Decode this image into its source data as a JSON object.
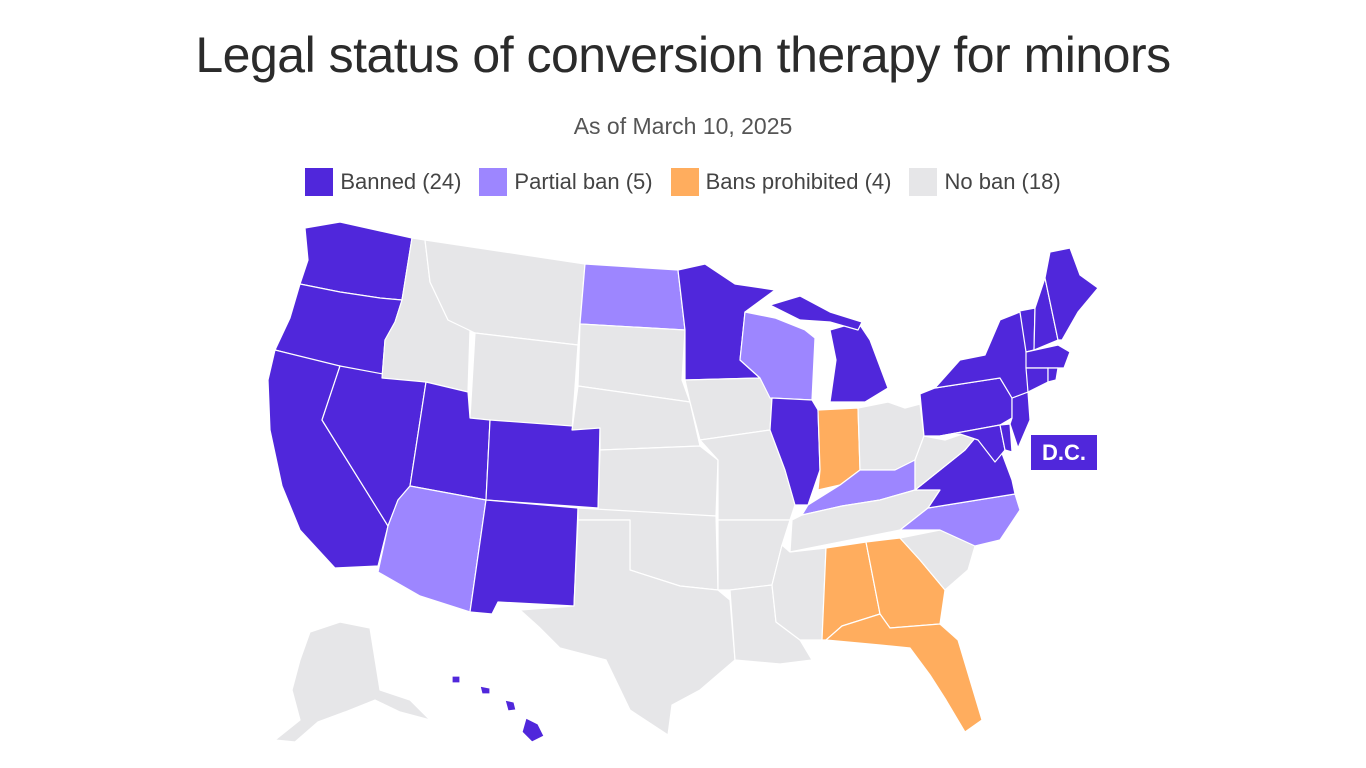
{
  "title": "Legal status of conversion therapy for minors",
  "subtitle": "As of March 10, 2025",
  "legend": [
    {
      "label": "Banned (24)",
      "color": "#5027db"
    },
    {
      "label": "Partial ban (5)",
      "color": "#9d86ff"
    },
    {
      "label": "Bans prohibited (4)",
      "color": "#ffad5e"
    },
    {
      "label": "No ban (18)",
      "color": "#e6e6e8"
    }
  ],
  "dc_label": "D.C.",
  "status_colors": {
    "banned": "#5027db",
    "partial": "#9d86ff",
    "prohibited": "#ffad5e",
    "none": "#e6e6e8"
  },
  "states": {
    "WA": "banned",
    "OR": "banned",
    "CA": "banned",
    "NV": "banned",
    "UT": "banned",
    "CO": "banned",
    "NM": "banned",
    "MN": "banned",
    "IL": "banned",
    "MI": "banned",
    "PA": "banned",
    "NY": "banned",
    "VT": "banned",
    "NH": "banned",
    "ME": "banned",
    "MA": "banned",
    "RI": "banned",
    "CT": "banned",
    "NJ": "banned",
    "DE": "banned",
    "MD": "banned",
    "VA": "banned",
    "HI": "banned",
    "DC": "banned",
    "ND": "partial",
    "WI": "partial",
    "KY": "partial",
    "NC": "partial",
    "AZ": "partial",
    "IN": "prohibited",
    "AL": "prohibited",
    "GA": "prohibited",
    "FL": "prohibited",
    "ID": "none",
    "MT": "none",
    "WY": "none",
    "SD": "none",
    "NE": "none",
    "KS": "none",
    "OK": "none",
    "TX": "none",
    "IA": "none",
    "MO": "none",
    "AR": "none",
    "LA": "none",
    "MS": "none",
    "TN": "none",
    "OH": "none",
    "WV": "none",
    "SC": "none",
    "AK": "none"
  }
}
